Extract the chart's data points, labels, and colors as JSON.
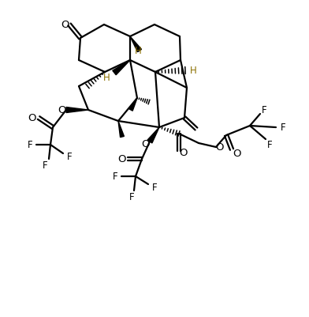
{
  "bg": "#ffffff",
  "fg": "#000000",
  "h_color": "#8B7000",
  "lw": 1.6,
  "fig_w": 3.88,
  "fig_h": 3.98,
  "dpi": 100
}
